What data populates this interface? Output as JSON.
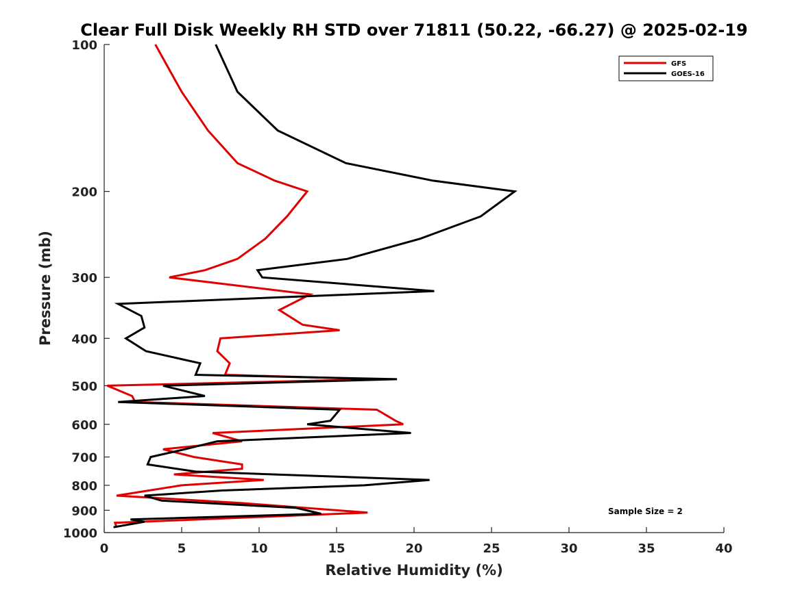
{
  "chart_data": {
    "type": "line",
    "title": "Clear Full Disk Weekly RH STD over 71811 (50.22, -66.27) @ 2025-02-19",
    "xlabel": "Relative Humidity (%)",
    "ylabel": "Pressure (mb)",
    "xlim": [
      0,
      40
    ],
    "ylim": [
      100,
      1000
    ],
    "y_scale": "log",
    "y_reversed": true,
    "x_ticks": [
      0,
      5,
      10,
      15,
      20,
      25,
      30,
      35,
      40
    ],
    "y_ticks": [
      100,
      200,
      300,
      400,
      500,
      600,
      700,
      800,
      900,
      1000
    ],
    "grid": false,
    "legend_position": "top-right",
    "annotation": "Sample Size = 2",
    "series": [
      {
        "name": "GFS",
        "color": "#e00000",
        "points": [
          [
            3.3,
            100
          ],
          [
            5.0,
            125
          ],
          [
            6.7,
            150
          ],
          [
            8.6,
            175
          ],
          [
            11.0,
            190
          ],
          [
            13.1,
            200
          ],
          [
            11.8,
            225
          ],
          [
            10.4,
            250
          ],
          [
            8.6,
            275
          ],
          [
            6.5,
            290
          ],
          [
            4.2,
            300
          ],
          [
            13.3,
            325
          ],
          [
            11.3,
            350
          ],
          [
            12.8,
            375
          ],
          [
            15.2,
            385
          ],
          [
            7.5,
            400
          ],
          [
            7.3,
            425
          ],
          [
            8.1,
            450
          ],
          [
            7.8,
            475
          ],
          [
            17.5,
            485
          ],
          [
            0.2,
            500
          ],
          [
            1.8,
            525
          ],
          [
            2.0,
            540
          ],
          [
            17.6,
            560
          ],
          [
            18.8,
            590
          ],
          [
            19.3,
            600
          ],
          [
            7.0,
            625
          ],
          [
            8.9,
            650
          ],
          [
            3.8,
            675
          ],
          [
            5.8,
            700
          ],
          [
            8.9,
            725
          ],
          [
            8.9,
            740
          ],
          [
            4.5,
            760
          ],
          [
            10.3,
            780
          ],
          [
            5.0,
            800
          ],
          [
            0.8,
            840
          ],
          [
            8.9,
            870
          ],
          [
            17.0,
            910
          ],
          [
            0.7,
            955
          ],
          [
            0.8,
            975
          ]
        ]
      },
      {
        "name": "GOES-16",
        "color": "#000000",
        "points": [
          [
            7.2,
            100
          ],
          [
            8.6,
            125
          ],
          [
            11.2,
            150
          ],
          [
            15.6,
            175
          ],
          [
            21.2,
            190
          ],
          [
            26.5,
            200
          ],
          [
            24.3,
            225
          ],
          [
            20.4,
            250
          ],
          [
            15.7,
            275
          ],
          [
            9.9,
            290
          ],
          [
            10.2,
            300
          ],
          [
            21.3,
            320
          ],
          [
            0.9,
            340
          ],
          [
            2.4,
            360
          ],
          [
            2.6,
            380
          ],
          [
            1.4,
            400
          ],
          [
            2.7,
            425
          ],
          [
            6.2,
            450
          ],
          [
            5.9,
            475
          ],
          [
            18.9,
            485
          ],
          [
            3.8,
            500
          ],
          [
            6.5,
            525
          ],
          [
            0.9,
            540
          ],
          [
            15.2,
            560
          ],
          [
            14.6,
            590
          ],
          [
            13.1,
            600
          ],
          [
            19.8,
            625
          ],
          [
            7.3,
            650
          ],
          [
            5.2,
            675
          ],
          [
            3.0,
            700
          ],
          [
            2.8,
            725
          ],
          [
            5.9,
            750
          ],
          [
            21.0,
            780
          ],
          [
            16.8,
            800
          ],
          [
            7.6,
            820
          ],
          [
            2.6,
            840
          ],
          [
            3.7,
            860
          ],
          [
            12.4,
            890
          ],
          [
            14.0,
            915
          ],
          [
            1.7,
            940
          ],
          [
            2.6,
            950
          ],
          [
            0.6,
            975
          ]
        ]
      }
    ]
  }
}
